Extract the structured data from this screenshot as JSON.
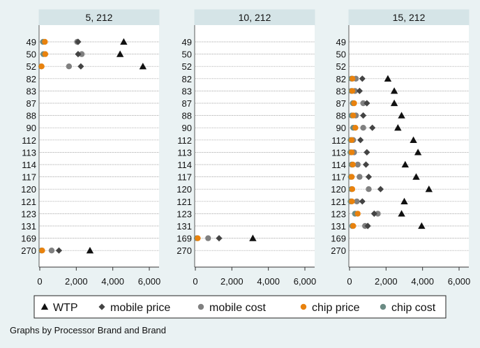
{
  "chart_data": {
    "type": "scatter",
    "subtype": "dot-plot-by-panel",
    "footnote": "Graphs by Processor Brand and Brand",
    "category_axis": [
      "49",
      "50",
      "52",
      "82",
      "83",
      "87",
      "88",
      "90",
      "112",
      "113",
      "114",
      "117",
      "120",
      "121",
      "123",
      "131",
      "169",
      "270"
    ],
    "xlim": [
      0,
      6000
    ],
    "xticks": [
      0,
      2000,
      4000,
      6000
    ],
    "xtick_labels": [
      "0",
      "2,000",
      "4,000",
      "6,000"
    ],
    "grid": true,
    "legend_position": "bottom",
    "legend": [
      {
        "key": "wtp",
        "label": "WTP",
        "marker": "triangle",
        "color": "#111111"
      },
      {
        "key": "mobile_price",
        "label": "mobile price",
        "marker": "diamond",
        "color": "#444444"
      },
      {
        "key": "mobile_cost",
        "label": "mobile cost",
        "marker": "circle",
        "color": "#808080"
      },
      {
        "key": "chip_price",
        "label": "chip price",
        "marker": "circle",
        "color": "#e8820e"
      },
      {
        "key": "chip_cost",
        "label": "chip cost",
        "marker": "circle",
        "color": "#6b8b84"
      }
    ],
    "panels": [
      {
        "title": "5, 212",
        "rows": [
          {
            "cat": "49",
            "wtp": 4600,
            "mobile_price": 2100,
            "mobile_cost": 2050,
            "chip_price": 280,
            "chip_cost": 180
          },
          {
            "cat": "50",
            "wtp": 4400,
            "mobile_price": 2100,
            "mobile_cost": 2300,
            "chip_price": 300,
            "chip_cost": 200
          },
          {
            "cat": "52",
            "wtp": 5650,
            "mobile_price": 2250,
            "mobile_cost": 1600,
            "chip_price": 100,
            "chip_cost": 80
          },
          {
            "cat": "270",
            "wtp": 2750,
            "mobile_price": 1050,
            "mobile_cost": 650,
            "chip_price": 130,
            "chip_cost": 90
          }
        ]
      },
      {
        "title": "10, 212",
        "rows": [
          {
            "cat": "169",
            "wtp": 3150,
            "mobile_price": 1300,
            "mobile_cost": 700,
            "chip_price": 130,
            "chip_cost": 80
          }
        ]
      },
      {
        "title": "15, 212",
        "rows": [
          {
            "cat": "82",
            "wtp": 2100,
            "mobile_price": 700,
            "mobile_cost": 350,
            "chip_price": 160,
            "chip_cost": 100
          },
          {
            "cat": "83",
            "wtp": 2450,
            "mobile_price": 550,
            "mobile_cost": 300,
            "chip_price": 150,
            "chip_cost": 100
          },
          {
            "cat": "87",
            "wtp": 2450,
            "mobile_price": 950,
            "mobile_cost": 750,
            "chip_price": 250,
            "chip_cost": 180
          },
          {
            "cat": "88",
            "wtp": 2850,
            "mobile_price": 750,
            "mobile_cost": 350,
            "chip_price": 200,
            "chip_cost": 120
          },
          {
            "cat": "90",
            "wtp": 2650,
            "mobile_price": 1250,
            "mobile_cost": 750,
            "chip_price": 320,
            "chip_cost": 200
          },
          {
            "cat": "112",
            "wtp": 3500,
            "mobile_price": 600,
            "mobile_cost": 200,
            "chip_price": 120,
            "chip_cost": 60
          },
          {
            "cat": "113",
            "wtp": 3750,
            "mobile_price": 950,
            "mobile_cost": 250,
            "chip_price": 120,
            "chip_cost": 50
          },
          {
            "cat": "114",
            "wtp": 3050,
            "mobile_price": 900,
            "mobile_cost": 450,
            "chip_price": 180,
            "chip_cost": 120
          },
          {
            "cat": "117",
            "wtp": 3650,
            "mobile_price": 1050,
            "mobile_cost": 550,
            "chip_price": 120,
            "chip_cost": 70
          },
          {
            "cat": "120",
            "wtp": 4350,
            "mobile_price": 1700,
            "mobile_cost": 1050,
            "chip_price": 150,
            "chip_cost": 100
          },
          {
            "cat": "121",
            "wtp": 3000,
            "mobile_price": 700,
            "mobile_cost": 400,
            "chip_price": 130,
            "chip_cost": 60
          },
          {
            "cat": "123",
            "wtp": 2850,
            "mobile_price": 1350,
            "mobile_cost": 1550,
            "chip_price": 450,
            "chip_cost": 300
          },
          {
            "cat": "131",
            "wtp": 3950,
            "mobile_price": 1000,
            "mobile_cost": 850,
            "chip_price": 200,
            "chip_cost": 150
          }
        ]
      }
    ]
  }
}
